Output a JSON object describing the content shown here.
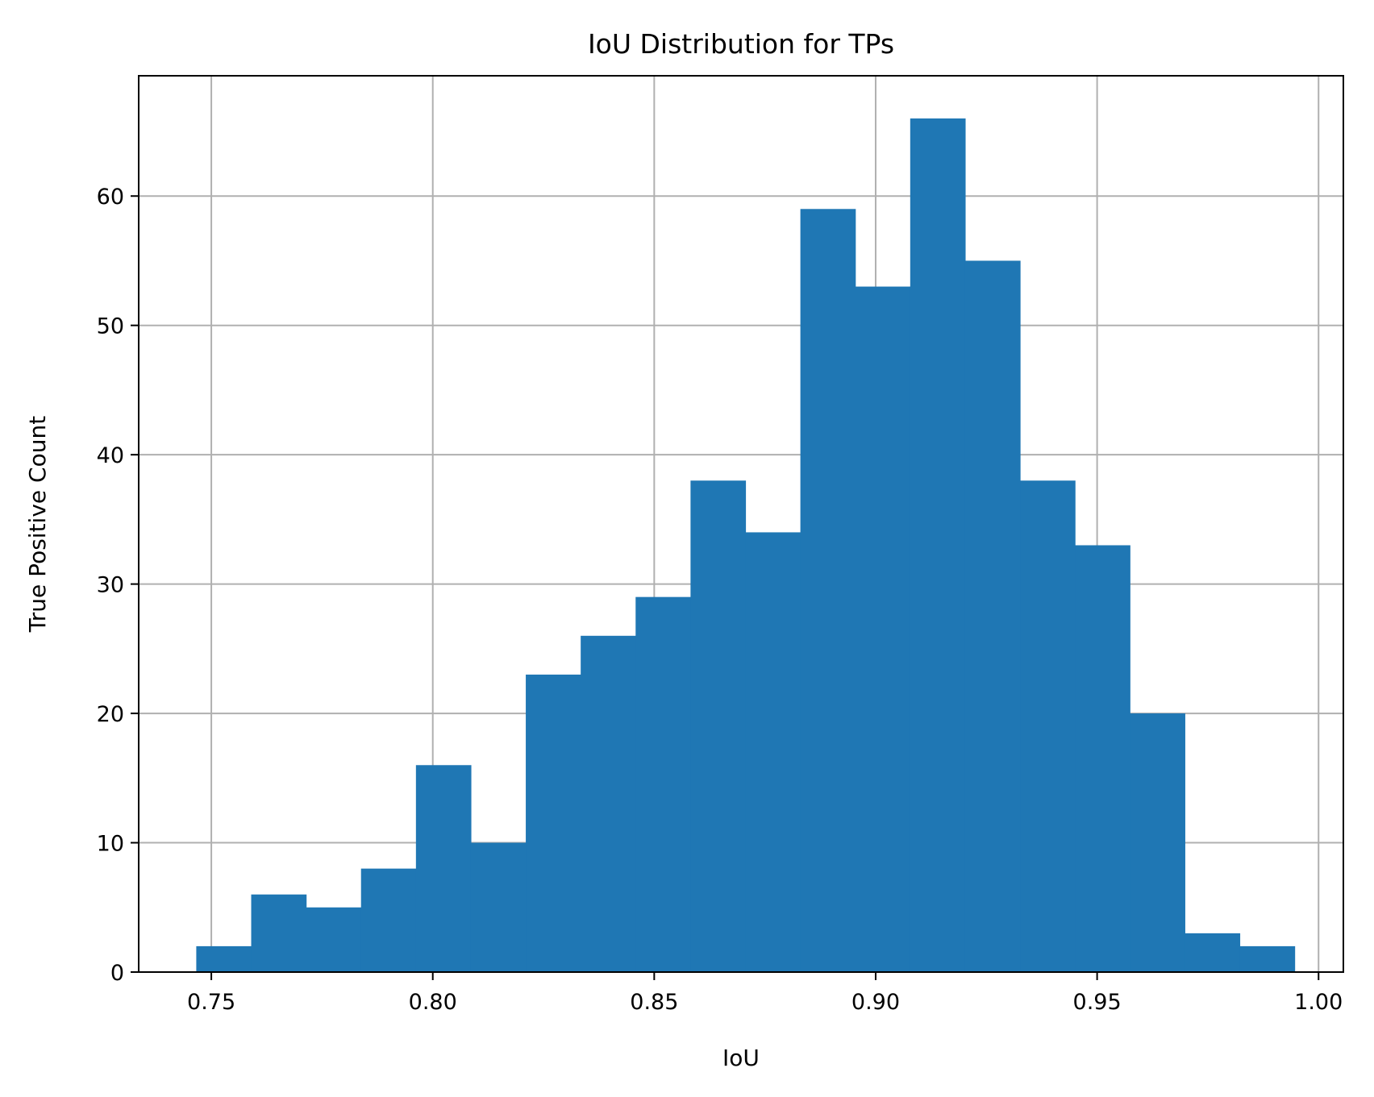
{
  "chart_data": {
    "type": "bar",
    "title": "IoU Distribution for TPs",
    "xlabel": "IoU",
    "ylabel": "True Positive Count",
    "xlim": [
      0.7336,
      1.0056
    ],
    "ylim": [
      0,
      69.3
    ],
    "grid": true,
    "bar_color": "#1f77b4",
    "bin_edges": [
      0.7466,
      0.759,
      0.7714,
      0.7838,
      0.7962,
      0.8086,
      0.821,
      0.8334,
      0.8458,
      0.8582,
      0.8706,
      0.883,
      0.8954,
      0.9078,
      0.9202,
      0.9326,
      0.945,
      0.9574,
      0.9698,
      0.9822,
      0.9946
    ],
    "values": [
      2,
      6,
      5,
      8,
      16,
      10,
      23,
      26,
      29,
      38,
      34,
      59,
      53,
      66,
      55,
      38,
      33,
      20,
      3,
      2
    ],
    "x_ticks": [
      0.75,
      0.8,
      0.85,
      0.9,
      0.95,
      1.0
    ],
    "x_tick_labels": [
      "0.75",
      "0.80",
      "0.85",
      "0.90",
      "0.95",
      "1.00"
    ],
    "y_ticks": [
      0,
      10,
      20,
      30,
      40,
      50,
      60
    ],
    "y_tick_labels": [
      "0",
      "10",
      "20",
      "30",
      "40",
      "50",
      "60"
    ]
  }
}
